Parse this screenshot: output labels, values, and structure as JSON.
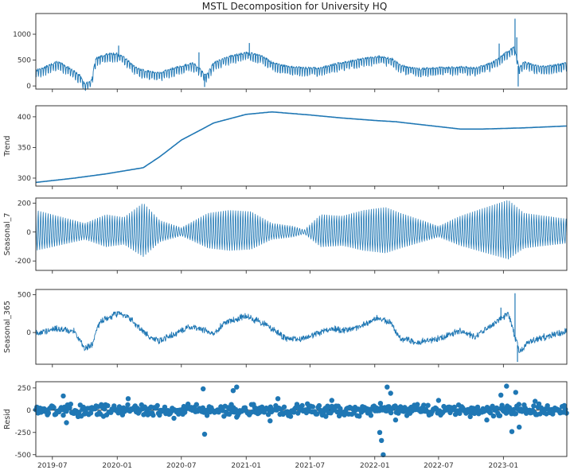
{
  "chart_data": {
    "type": "line",
    "title": "MSTL Decomposition for University HQ",
    "color": "#1f77b4",
    "x_range": [
      "2019-05-15",
      "2023-06-30"
    ],
    "x_ticks": [
      {
        "date": "2019-07-01",
        "label": "2019-07"
      },
      {
        "date": "2020-01-01",
        "label": "2020-01"
      },
      {
        "date": "2020-07-01",
        "label": "2020-07"
      },
      {
        "date": "2021-01-01",
        "label": "2021-01"
      },
      {
        "date": "2021-07-01",
        "label": "2021-07"
      },
      {
        "date": "2022-01-01",
        "label": "2022-01"
      },
      {
        "date": "2022-07-01",
        "label": "2022-07"
      },
      {
        "date": "2023-01-01",
        "label": "2023-01"
      }
    ],
    "panels": [
      {
        "key": "observed",
        "ylabel": "",
        "style": "line",
        "ylim": [
          -60,
          1400
        ],
        "yticks": [
          0,
          500,
          1000
        ],
        "points": [
          [
            "2019-05-15",
            250
          ],
          [
            "2019-06-15",
            330
          ],
          [
            "2019-07-15",
            420
          ],
          [
            "2019-08-15",
            310
          ],
          [
            "2019-09-01",
            230
          ],
          [
            "2019-09-20",
            140
          ],
          [
            "2019-10-01",
            -20
          ],
          [
            "2019-10-20",
            60
          ],
          [
            "2019-11-01",
            480
          ],
          [
            "2019-12-01",
            560
          ],
          [
            "2020-01-01",
            580
          ],
          [
            "2020-01-25",
            480
          ],
          [
            "2020-02-15",
            350
          ],
          [
            "2020-03-01",
            280
          ],
          [
            "2020-04-01",
            230
          ],
          [
            "2020-05-01",
            200
          ],
          [
            "2020-06-01",
            280
          ],
          [
            "2020-07-01",
            330
          ],
          [
            "2020-08-01",
            400
          ],
          [
            "2020-08-20",
            300
          ],
          [
            "2020-09-10",
            150
          ],
          [
            "2020-10-01",
            400
          ],
          [
            "2020-11-15",
            520
          ],
          [
            "2021-01-01",
            600
          ],
          [
            "2021-02-15",
            540
          ],
          [
            "2021-03-15",
            400
          ],
          [
            "2021-05-01",
            320
          ],
          [
            "2021-06-15",
            300
          ],
          [
            "2021-08-01",
            300
          ],
          [
            "2021-09-15",
            380
          ],
          [
            "2021-11-15",
            460
          ],
          [
            "2022-01-15",
            520
          ],
          [
            "2022-02-20",
            470
          ],
          [
            "2022-03-15",
            350
          ],
          [
            "2022-05-01",
            280
          ],
          [
            "2022-07-01",
            300
          ],
          [
            "2022-09-01",
            320
          ],
          [
            "2022-10-15",
            300
          ],
          [
            "2022-12-01",
            400
          ],
          [
            "2023-01-01",
            560
          ],
          [
            "2023-02-01",
            700
          ],
          [
            "2023-02-15",
            300
          ],
          [
            "2023-03-01",
            420
          ],
          [
            "2023-04-01",
            340
          ],
          [
            "2023-05-01",
            320
          ],
          [
            "2023-06-30",
            390
          ]
        ],
        "spikes": [
          [
            "2023-02-03",
            1300
          ],
          [
            "2023-02-08",
            940
          ],
          [
            "2023-02-12",
            -10
          ],
          [
            "2022-12-20",
            820
          ],
          [
            "2021-01-10",
            830
          ],
          [
            "2020-01-05",
            780
          ],
          [
            "2020-08-20",
            650
          ],
          [
            "2020-09-05",
            -20
          ]
        ]
      },
      {
        "key": "trend",
        "ylabel": "Trend",
        "style": "line",
        "ylim": [
          287,
          418
        ],
        "yticks": [
          300,
          350,
          400
        ],
        "points": [
          [
            "2019-05-15",
            293
          ],
          [
            "2019-09-01",
            300
          ],
          [
            "2019-12-01",
            307
          ],
          [
            "2020-03-15",
            317
          ],
          [
            "2020-05-01",
            335
          ],
          [
            "2020-07-01",
            362
          ],
          [
            "2020-10-01",
            390
          ],
          [
            "2021-01-01",
            404
          ],
          [
            "2021-03-15",
            408
          ],
          [
            "2021-07-01",
            403
          ],
          [
            "2021-10-01",
            398
          ],
          [
            "2022-01-01",
            394
          ],
          [
            "2022-03-01",
            392
          ],
          [
            "2022-06-01",
            386
          ],
          [
            "2022-09-01",
            380
          ],
          [
            "2022-11-01",
            380
          ],
          [
            "2023-01-01",
            381
          ],
          [
            "2023-03-01",
            382
          ],
          [
            "2023-06-30",
            385
          ]
        ]
      },
      {
        "key": "seasonal_7",
        "ylabel": "Seasonal_7",
        "style": "oscillation",
        "ylim": [
          -265,
          235
        ],
        "yticks": [
          -200,
          0,
          200
        ],
        "envelope": [
          [
            "2019-05-15",
            150
          ],
          [
            "2019-10-01",
            60
          ],
          [
            "2019-12-01",
            120
          ],
          [
            "2020-01-20",
            100
          ],
          [
            "2020-03-15",
            200
          ],
          [
            "2020-05-01",
            80
          ],
          [
            "2020-07-01",
            30
          ],
          [
            "2020-09-15",
            130
          ],
          [
            "2020-11-15",
            150
          ],
          [
            "2021-01-15",
            140
          ],
          [
            "2021-03-15",
            60
          ],
          [
            "2021-05-15",
            40
          ],
          [
            "2021-06-15",
            15
          ],
          [
            "2021-08-01",
            120
          ],
          [
            "2021-10-01",
            110
          ],
          [
            "2021-12-01",
            150
          ],
          [
            "2022-02-01",
            170
          ],
          [
            "2022-03-15",
            130
          ],
          [
            "2022-05-15",
            80
          ],
          [
            "2022-07-01",
            40
          ],
          [
            "2022-09-01",
            110
          ],
          [
            "2022-11-01",
            160
          ],
          [
            "2023-01-15",
            220
          ],
          [
            "2023-03-01",
            130
          ],
          [
            "2023-06-30",
            90
          ]
        ]
      },
      {
        "key": "seasonal_365",
        "ylabel": "Seasonal_365",
        "style": "line",
        "ylim": [
          -420,
          570
        ],
        "yticks": [
          0,
          500
        ],
        "points": [
          [
            "2019-05-15",
            -20
          ],
          [
            "2019-07-15",
            60
          ],
          [
            "2019-09-01",
            10
          ],
          [
            "2019-10-01",
            -210
          ],
          [
            "2019-10-20",
            -170
          ],
          [
            "2019-11-15",
            150
          ],
          [
            "2020-01-01",
            250
          ],
          [
            "2020-02-01",
            200
          ],
          [
            "2020-04-01",
            -60
          ],
          [
            "2020-05-01",
            -110
          ],
          [
            "2020-06-01",
            -40
          ],
          [
            "2020-08-01",
            80
          ],
          [
            "2020-09-01",
            40
          ],
          [
            "2020-10-01",
            -20
          ],
          [
            "2020-11-01",
            130
          ],
          [
            "2021-01-01",
            220
          ],
          [
            "2021-03-01",
            100
          ],
          [
            "2021-04-15",
            -60
          ],
          [
            "2021-06-01",
            -100
          ],
          [
            "2021-07-15",
            -20
          ],
          [
            "2021-09-01",
            50
          ],
          [
            "2021-10-15",
            30
          ],
          [
            "2021-12-01",
            100
          ],
          [
            "2022-01-15",
            200
          ],
          [
            "2022-02-15",
            120
          ],
          [
            "2022-03-15",
            -80
          ],
          [
            "2022-05-01",
            -130
          ],
          [
            "2022-07-01",
            -80
          ],
          [
            "2022-09-01",
            20
          ],
          [
            "2022-10-15",
            -60
          ],
          [
            "2022-12-01",
            100
          ],
          [
            "2023-01-15",
            250
          ],
          [
            "2023-02-15",
            -250
          ],
          [
            "2023-03-15",
            -120
          ],
          [
            "2023-05-01",
            -60
          ],
          [
            "2023-06-30",
            20
          ]
        ],
        "spikes": [
          [
            "2023-02-03",
            520
          ],
          [
            "2023-02-10",
            -390
          ],
          [
            "2022-12-25",
            330
          ]
        ]
      },
      {
        "key": "resid",
        "ylabel": "Resid",
        "style": "scatter",
        "ylim": [
          -520,
          320
        ],
        "yticks": [
          -500,
          -250,
          0,
          250
        ],
        "outliers": [
          [
            "2019-08-01",
            160
          ],
          [
            "2019-08-10",
            -140
          ],
          [
            "2020-02-01",
            130
          ],
          [
            "2020-06-10",
            -90
          ],
          [
            "2020-09-01",
            240
          ],
          [
            "2020-09-05",
            -270
          ],
          [
            "2020-11-25",
            220
          ],
          [
            "2020-12-05",
            260
          ],
          [
            "2021-03-10",
            -120
          ],
          [
            "2021-04-01",
            130
          ],
          [
            "2021-08-15",
            -70
          ],
          [
            "2021-09-01",
            110
          ],
          [
            "2022-01-15",
            -250
          ],
          [
            "2022-01-20",
            -340
          ],
          [
            "2022-01-25",
            -500
          ],
          [
            "2022-02-05",
            260
          ],
          [
            "2022-02-15",
            190
          ],
          [
            "2022-03-01",
            -110
          ],
          [
            "2022-07-01",
            110
          ],
          [
            "2022-11-15",
            -110
          ],
          [
            "2022-12-25",
            170
          ],
          [
            "2023-01-10",
            270
          ],
          [
            "2023-01-25",
            -240
          ],
          [
            "2023-02-05",
            200
          ],
          [
            "2023-02-15",
            -190
          ],
          [
            "2023-04-01",
            100
          ]
        ]
      }
    ]
  }
}
